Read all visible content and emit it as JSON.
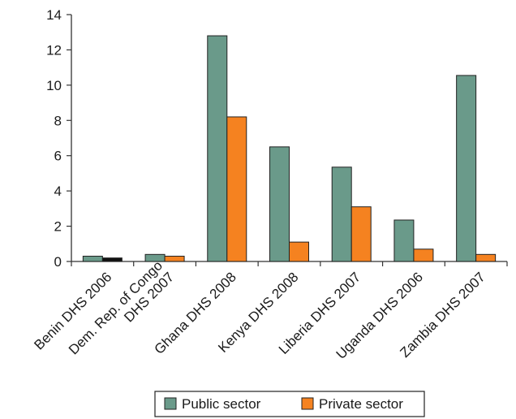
{
  "chart_data": {
    "type": "bar",
    "title": "",
    "xlabel": "",
    "ylabel": "",
    "ylim": [
      0,
      14
    ],
    "yticks": [
      0,
      2,
      4,
      6,
      8,
      10,
      12,
      14
    ],
    "yticks_text": [
      "0",
      "2",
      "4",
      "6",
      "8",
      "10",
      "12",
      "14"
    ],
    "grid": false,
    "legend_position": "bottom",
    "categories": [
      "Benin DHS 2006",
      "Dem. Rep. of Congo DHS 2007",
      "Ghana DHS 2008",
      "Kenya DHS 2008",
      "Liberia DHS 2007",
      "Uganda DHS 2006",
      "Zambia DHS 2007"
    ],
    "category_lines": [
      [
        "Benin DHS 2006"
      ],
      [
        "Dem. Rep. of Congo",
        "DHS 2007"
      ],
      [
        "Ghana DHS 2008"
      ],
      [
        "Kenya DHS 2008"
      ],
      [
        "Liberia DHS 2007"
      ],
      [
        "Uganda DHS 2006"
      ],
      [
        "Zambia DHS 2007"
      ]
    ],
    "series": [
      {
        "name": "Public sector",
        "color": "#6a9a8a",
        "values": [
          0.3,
          0.4,
          12.8,
          6.5,
          5.35,
          2.35,
          10.55
        ]
      },
      {
        "name": "Private sector",
        "color": "#f58220",
        "values": [
          0.2,
          0.3,
          8.2,
          1.1,
          3.1,
          0.7,
          0.4
        ]
      }
    ],
    "special_bar_colors": [
      {
        "series": 1,
        "category": 0,
        "color": "#111111"
      }
    ]
  }
}
